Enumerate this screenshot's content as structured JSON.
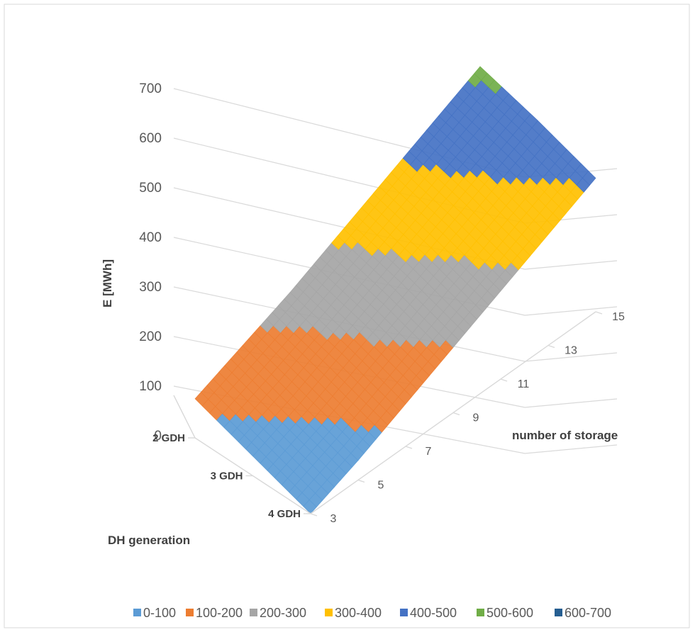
{
  "chart_data": {
    "type": "surface",
    "title": "",
    "zlabel": "E [MWh]",
    "xlabel": "number of storage",
    "ylabel": "DH generation",
    "zlim": [
      0,
      700
    ],
    "z_ticks": [
      "0",
      "100",
      "200",
      "300",
      "400",
      "500",
      "600",
      "700"
    ],
    "x_ticks": [
      "3",
      "5",
      "7",
      "9",
      "11",
      "13",
      "15"
    ],
    "y_ticks": [
      "2 GDH",
      "3 GDH",
      "4 GDH"
    ],
    "storage": [
      3,
      5,
      7,
      9,
      11,
      13,
      15
    ],
    "generation": [
      "2 GDH",
      "3 GDH",
      "4 GDH"
    ],
    "z": [
      [
        120,
        180,
        240,
        310,
        380,
        450,
        520
      ],
      [
        60,
        120,
        190,
        260,
        330,
        400,
        470
      ],
      [
        0,
        60,
        130,
        200,
        270,
        340,
        410
      ]
    ],
    "legend_position": "bottom",
    "legend": [
      {
        "label": "0-100",
        "color": "#5b9bd5"
      },
      {
        "label": "100-200",
        "color": "#ed7d31"
      },
      {
        "label": "200-300",
        "color": "#a5a5a5"
      },
      {
        "label": "300-400",
        "color": "#ffc000"
      },
      {
        "label": "400-500",
        "color": "#4472c4"
      },
      {
        "label": "500-600",
        "color": "#70ad47"
      },
      {
        "label": "600-700",
        "color": "#255e91"
      }
    ]
  }
}
